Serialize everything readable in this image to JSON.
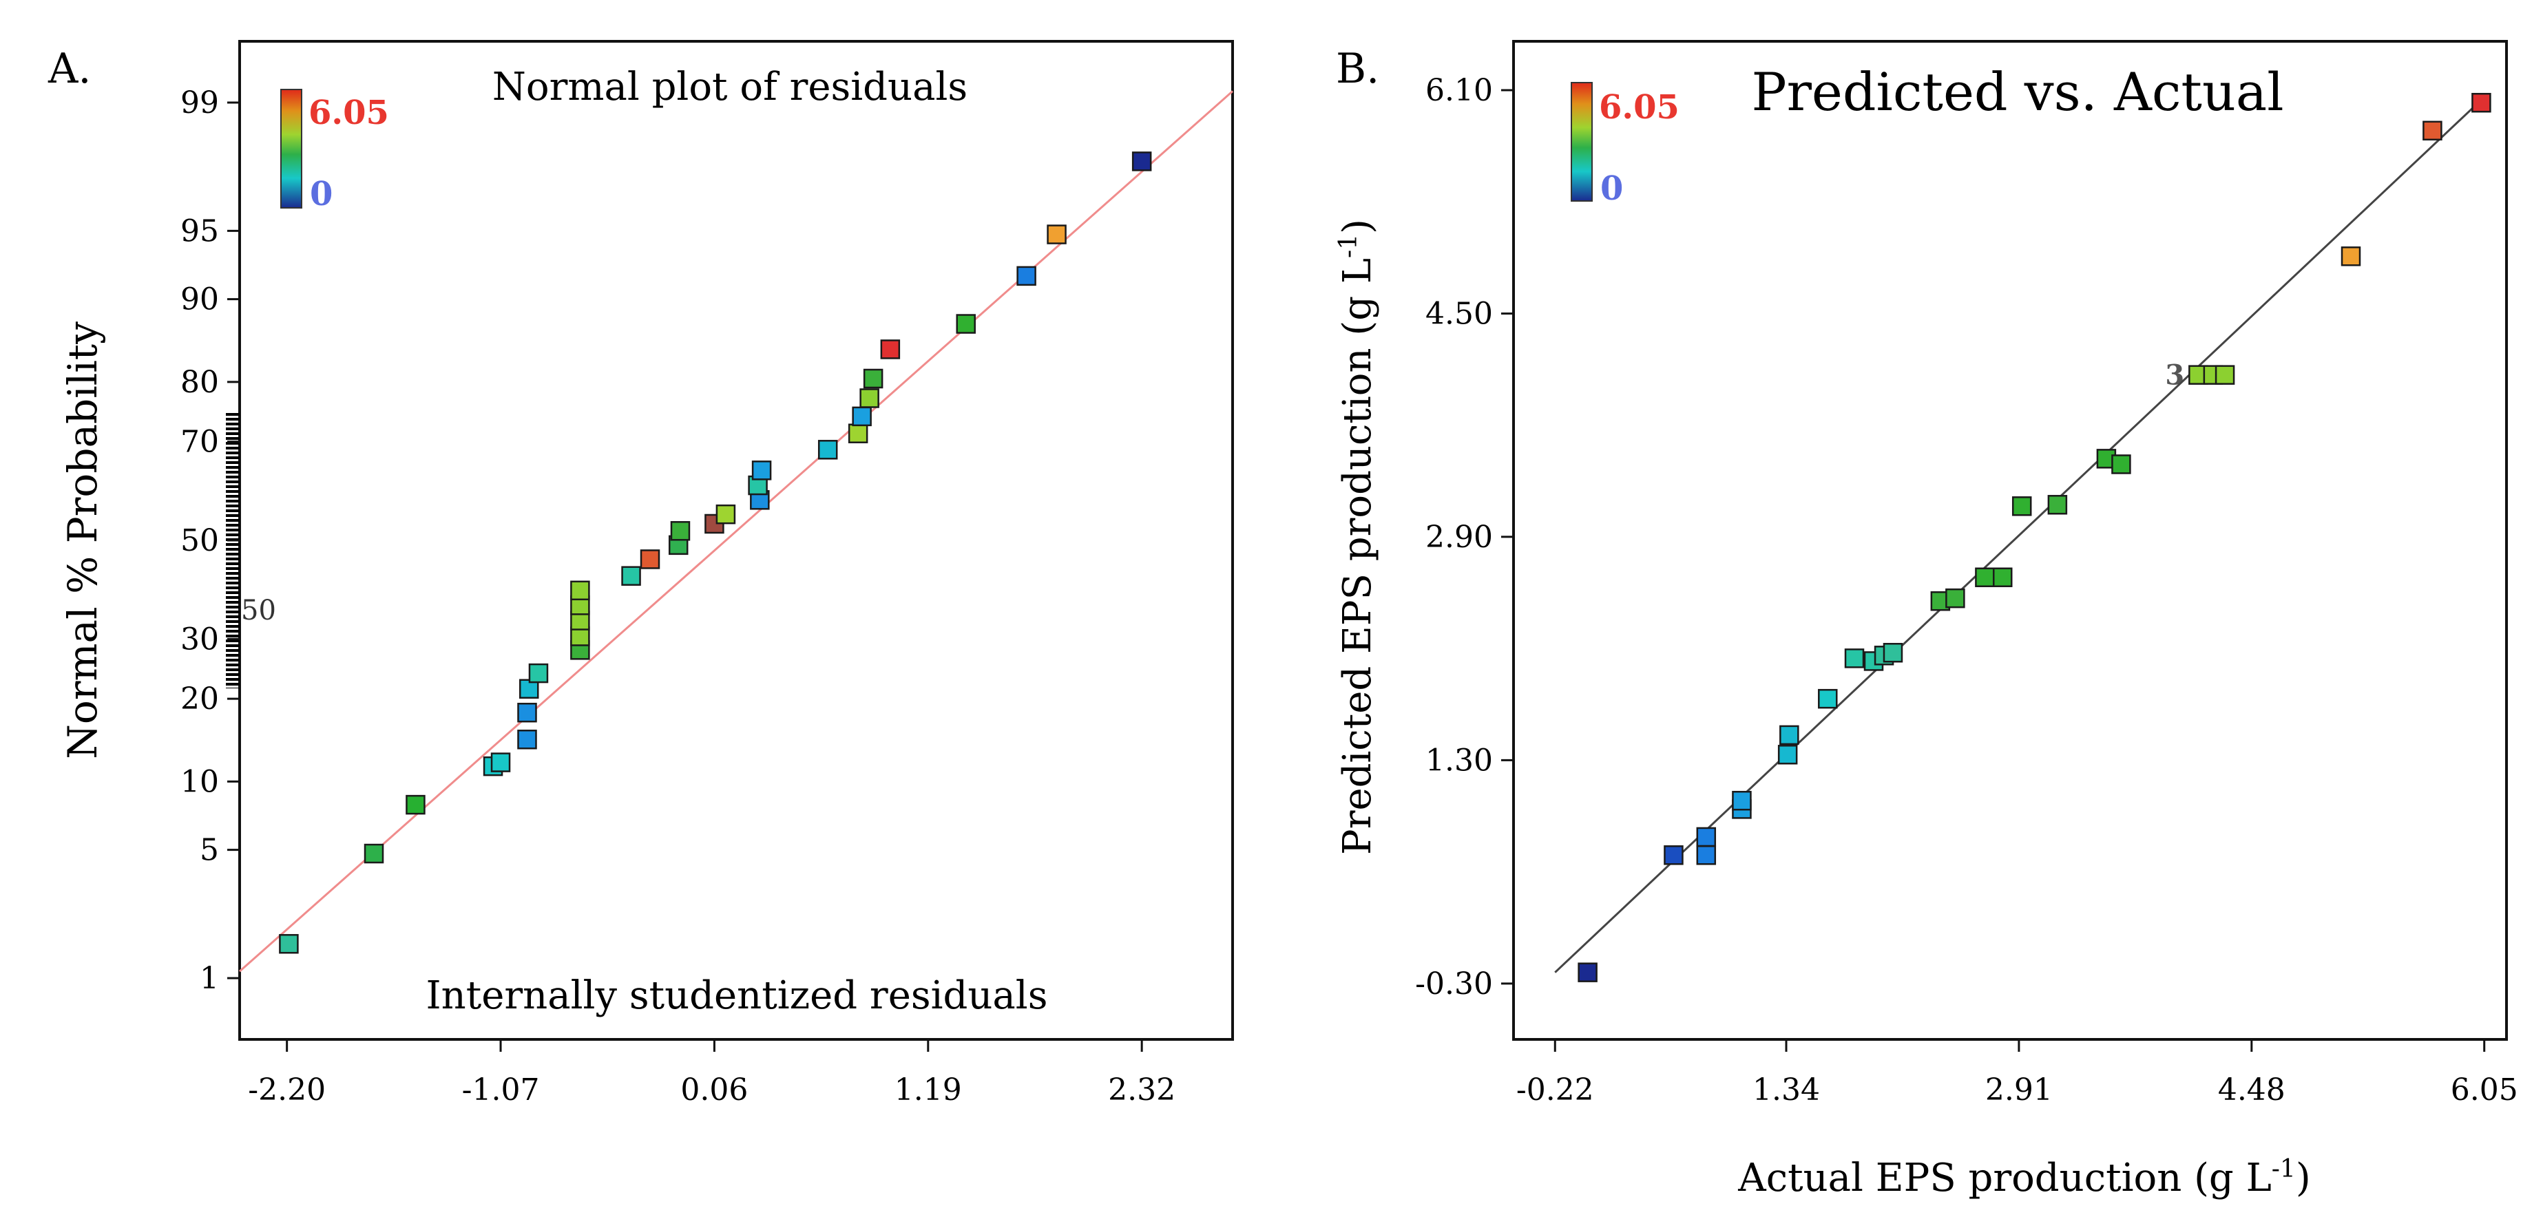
{
  "chart_data": [
    {
      "type": "scatter",
      "panel_label": "A.",
      "title": "Normal plot of residuals",
      "xlabel": "Internally studentized residuals",
      "ylabel": "Normal % Probability",
      "xlim": [
        -2.45,
        2.8
      ],
      "ylim": [
        0.4,
        99.6
      ],
      "scale": "normal-probability",
      "x_ticks": [
        -2.2,
        -1.07,
        0.06,
        1.19,
        2.32
      ],
      "x_tick_labels": [
        "-2.20",
        "-1.07",
        "0.06",
        "1.19",
        "2.32"
      ],
      "y_ticks": [
        1,
        5,
        10,
        20,
        30,
        50,
        70,
        80,
        90,
        95,
        99
      ],
      "y_tick_labels": [
        "1",
        "5",
        "10",
        "20",
        "30",
        "50",
        "70",
        "80",
        "90",
        "95",
        "99"
      ],
      "annotation": "50",
      "grid": false,
      "legend": {
        "position": "top-left",
        "max_label": "6.05",
        "min_label": "0",
        "max_color": "#e8372f",
        "min_color": "#5b6ee0"
      },
      "reference_line": {
        "x": [
          -2.45,
          2.8
        ],
        "y": [
          1.1,
          99.15
        ],
        "color": "#f08c8c"
      },
      "points": [
        {
          "x": -2.19,
          "y": 1.6,
          "color": "#2fbf9a"
        },
        {
          "x": -1.74,
          "y": 4.8,
          "color": "#2db04a"
        },
        {
          "x": -1.52,
          "y": 8.0,
          "color": "#27b031"
        },
        {
          "x": -1.11,
          "y": 11.5,
          "color": "#18c8c8"
        },
        {
          "x": -1.07,
          "y": 11.9,
          "color": "#18c8c8"
        },
        {
          "x": -0.93,
          "y": 14.5,
          "color": "#1a8fe0"
        },
        {
          "x": -0.93,
          "y": 18.0,
          "color": "#1a8fe0"
        },
        {
          "x": -0.92,
          "y": 21.5,
          "color": "#16b8d0"
        },
        {
          "x": -0.87,
          "y": 24.0,
          "color": "#26c5a5"
        },
        {
          "x": -0.65,
          "y": 28.0,
          "color": "#3ab03a"
        },
        {
          "x": -0.65,
          "y": 30.5,
          "color": "#8cd030"
        },
        {
          "x": -0.65,
          "y": 33.5,
          "color": "#8cd030"
        },
        {
          "x": -0.65,
          "y": 36.5,
          "color": "#8cd030"
        },
        {
          "x": -0.65,
          "y": 39.5,
          "color": "#8cd030"
        },
        {
          "x": -0.38,
          "y": 42.5,
          "color": "#26c5a5"
        },
        {
          "x": -0.28,
          "y": 46.0,
          "color": "#e05a30"
        },
        {
          "x": -0.13,
          "y": 49.0,
          "color": "#30b050"
        },
        {
          "x": -0.12,
          "y": 52.0,
          "color": "#3ab03a"
        },
        {
          "x": 0.06,
          "y": 53.5,
          "color": "#a04a40"
        },
        {
          "x": 0.12,
          "y": 55.5,
          "color": "#9ed430"
        },
        {
          "x": 0.3,
          "y": 58.5,
          "color": "#1a8fe0"
        },
        {
          "x": 0.29,
          "y": 61.5,
          "color": "#26c5a5"
        },
        {
          "x": 0.31,
          "y": 64.5,
          "color": "#1a9fe0"
        },
        {
          "x": 0.66,
          "y": 68.5,
          "color": "#16b8d0"
        },
        {
          "x": 0.82,
          "y": 71.5,
          "color": "#9ed430"
        },
        {
          "x": 0.84,
          "y": 74.5,
          "color": "#1aa0e0"
        },
        {
          "x": 0.88,
          "y": 77.5,
          "color": "#8cd030"
        },
        {
          "x": 0.9,
          "y": 80.5,
          "color": "#3ab03a"
        },
        {
          "x": 0.99,
          "y": 84.5,
          "color": "#e03030"
        },
        {
          "x": 1.39,
          "y": 87.5,
          "color": "#30b030"
        },
        {
          "x": 1.71,
          "y": 92.0,
          "color": "#1a7ee0"
        },
        {
          "x": 1.87,
          "y": 94.8,
          "color": "#f0a030"
        },
        {
          "x": 2.32,
          "y": 97.8,
          "color": "#1a2a90"
        }
      ]
    },
    {
      "type": "scatter",
      "panel_label": "B.",
      "title": "Predicted vs. Actual",
      "xlabel": "Actual EPS production (g L",
      "xlabel_exp": "-1",
      "xlabel_close": ")",
      "ylabel": "Predicted EPS production (g L",
      "ylabel_exp": "-1",
      "ylabel_close": ")",
      "xlim": [
        -0.5,
        6.2
      ],
      "ylim": [
        -0.7,
        6.45
      ],
      "x_ticks": [
        -0.22,
        1.34,
        2.91,
        4.48,
        6.05
      ],
      "x_tick_labels": [
        "-0.22",
        "1.34",
        "2.91",
        "4.48",
        "6.05"
      ],
      "y_ticks": [
        -0.3,
        1.3,
        2.9,
        4.5,
        6.1
      ],
      "y_tick_labels": [
        "-0.30",
        "1.30",
        "2.90",
        "4.50",
        "6.10"
      ],
      "annotation": "3",
      "grid": false,
      "legend": {
        "position": "top-left",
        "max_label": "6.05",
        "min_label": "0",
        "max_color": "#e8372f",
        "min_color": "#5b6ee0"
      },
      "reference_line": {
        "x": [
          -0.22,
          6.05
        ],
        "y": [
          -0.22,
          6.05
        ],
        "color": "#444444"
      },
      "points": [
        {
          "x": 0.0,
          "y": -0.22,
          "color": "#1a2a90"
        },
        {
          "x": 0.58,
          "y": 0.62,
          "color": "#1a4ec0"
        },
        {
          "x": 0.8,
          "y": 0.62,
          "color": "#1a7ee0"
        },
        {
          "x": 0.8,
          "y": 0.75,
          "color": "#1a7ee0"
        },
        {
          "x": 1.04,
          "y": 0.95,
          "color": "#1a9fe0"
        },
        {
          "x": 1.04,
          "y": 1.01,
          "color": "#1a9fe0"
        },
        {
          "x": 1.35,
          "y": 1.34,
          "color": "#16b8d0"
        },
        {
          "x": 1.36,
          "y": 1.48,
          "color": "#16b8d0"
        },
        {
          "x": 1.62,
          "y": 1.74,
          "color": "#18c8c8"
        },
        {
          "x": 1.8,
          "y": 2.03,
          "color": "#26c5a5"
        },
        {
          "x": 1.93,
          "y": 2.01,
          "color": "#26c5a5"
        },
        {
          "x": 2.0,
          "y": 2.05,
          "color": "#2fbf9a"
        },
        {
          "x": 2.06,
          "y": 2.07,
          "color": "#2fbf9a"
        },
        {
          "x": 2.38,
          "y": 2.44,
          "color": "#3ab03a"
        },
        {
          "x": 2.48,
          "y": 2.46,
          "color": "#3ab03a"
        },
        {
          "x": 2.68,
          "y": 2.61,
          "color": "#30b030"
        },
        {
          "x": 2.8,
          "y": 2.61,
          "color": "#30b030"
        },
        {
          "x": 2.93,
          "y": 3.12,
          "color": "#30b030"
        },
        {
          "x": 3.17,
          "y": 3.13,
          "color": "#3ab03a"
        },
        {
          "x": 3.5,
          "y": 3.46,
          "color": "#30b030"
        },
        {
          "x": 3.6,
          "y": 3.42,
          "color": "#30b030"
        },
        {
          "x": 4.12,
          "y": 4.06,
          "color": "#8cd030"
        },
        {
          "x": 4.22,
          "y": 4.06,
          "color": "#8cd030"
        },
        {
          "x": 4.3,
          "y": 4.06,
          "color": "#8cd030"
        },
        {
          "x": 5.15,
          "y": 4.91,
          "color": "#f0a030"
        },
        {
          "x": 5.7,
          "y": 5.81,
          "color": "#e05a30"
        },
        {
          "x": 6.03,
          "y": 6.01,
          "color": "#e03030"
        }
      ]
    }
  ]
}
